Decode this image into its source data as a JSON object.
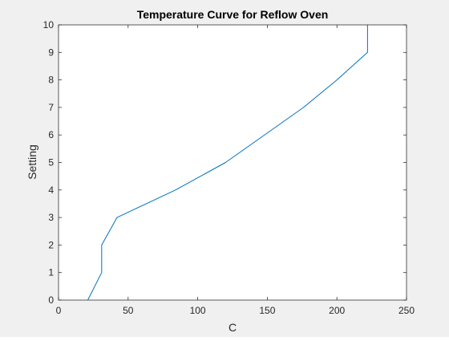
{
  "chart_data": {
    "type": "line",
    "title": "Temperature Curve for Reflow Oven",
    "xlabel": "C",
    "ylabel": "Setting",
    "xlim": [
      0,
      250
    ],
    "ylim": [
      0,
      10
    ],
    "xticks": [
      0,
      50,
      100,
      150,
      200,
      250
    ],
    "yticks": [
      0,
      1,
      2,
      3,
      4,
      5,
      6,
      7,
      8,
      9,
      10
    ],
    "grid": false,
    "series": [
      {
        "color": "#0072BD",
        "x": [
          21,
          31,
          31,
          42,
          84,
          120,
          176,
          200,
          222,
          222
        ],
        "y": [
          0,
          1,
          2,
          3,
          4,
          5,
          7,
          8,
          9,
          10
        ]
      }
    ]
  }
}
